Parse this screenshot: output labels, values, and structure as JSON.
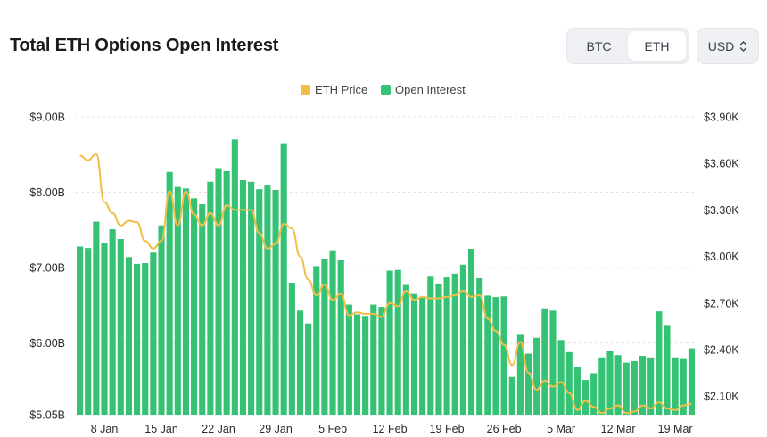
{
  "header": {
    "title": "Total ETH Options Open Interest",
    "asset_tabs": [
      {
        "label": "BTC",
        "active": false
      },
      {
        "label": "ETH",
        "active": true
      }
    ],
    "currency": {
      "label": "USD",
      "icon": "chevron-updown-icon"
    }
  },
  "colors": {
    "open_interest": "#35c274",
    "eth_price": "#f0bf4a",
    "grid": "#e3e3e3"
  },
  "chart_data": {
    "type": "bar",
    "legend": [
      {
        "name": "ETH Price",
        "color": "#f0bf4a"
      },
      {
        "name": "Open Interest",
        "color": "#35c274"
      }
    ],
    "legend_position": "top-center",
    "grid": true,
    "y_left": {
      "ticks": [
        "$9.00B",
        "$8.00B",
        "$7.00B",
        "$6.00B",
        "$5.05B"
      ],
      "tick_values": [
        9.0,
        8.0,
        7.0,
        6.0,
        5.05
      ],
      "range": [
        5.05,
        9.0
      ],
      "unit": "B USD"
    },
    "y_right": {
      "ticks": [
        "$3.90K",
        "$3.60K",
        "$3.30K",
        "$3.00K",
        "$2.70K",
        "$2.40K",
        "$2.10K"
      ],
      "tick_values": [
        3.9,
        3.6,
        3.3,
        3.0,
        2.7,
        2.4,
        2.1
      ],
      "range": [
        1.98,
        3.9
      ],
      "unit": "K USD"
    },
    "x_ticks": [
      {
        "label": "8 Jan",
        "index": 3
      },
      {
        "label": "15 Jan",
        "index": 10
      },
      {
        "label": "22 Jan",
        "index": 17
      },
      {
        "label": "29 Jan",
        "index": 24
      },
      {
        "label": "5 Feb",
        "index": 31
      },
      {
        "label": "12 Feb",
        "index": 38
      },
      {
        "label": "19 Feb",
        "index": 45
      },
      {
        "label": "26 Feb",
        "index": 52
      },
      {
        "label": "5 Mar",
        "index": 59
      },
      {
        "label": "12 Mar",
        "index": 66
      },
      {
        "label": "19 Mar",
        "index": 73
      }
    ],
    "series": [
      {
        "name": "Open Interest",
        "kind": "bar",
        "axis": "left",
        "values": [
          7.28,
          7.26,
          7.61,
          7.33,
          7.51,
          7.38,
          7.14,
          7.05,
          7.06,
          7.2,
          7.56,
          8.27,
          8.07,
          8.05,
          7.92,
          7.84,
          8.14,
          8.32,
          8.28,
          8.7,
          8.16,
          8.14,
          8.04,
          8.1,
          8.03,
          8.65,
          6.8,
          6.43,
          6.26,
          7.02,
          7.12,
          7.23,
          7.1,
          6.51,
          6.38,
          6.36,
          6.51,
          6.48,
          6.96,
          6.97,
          6.77,
          6.65,
          6.6,
          6.88,
          6.79,
          6.87,
          6.92,
          7.04,
          7.25,
          6.86,
          6.63,
          6.61,
          6.62,
          5.55,
          6.11,
          5.86,
          6.07,
          6.46,
          6.43,
          6.04,
          5.88,
          5.68,
          5.51,
          5.6,
          5.81,
          5.89,
          5.84,
          5.74,
          5.76,
          5.83,
          5.81,
          6.42,
          6.24,
          5.81,
          5.8,
          5.93
        ]
      },
      {
        "name": "ETH Price",
        "kind": "line",
        "axis": "right",
        "values": [
          3.65,
          3.62,
          3.66,
          3.35,
          3.28,
          3.2,
          3.23,
          3.22,
          3.1,
          3.05,
          3.1,
          3.42,
          3.2,
          3.42,
          3.27,
          3.2,
          3.28,
          3.2,
          3.33,
          3.3,
          3.3,
          3.3,
          3.15,
          3.05,
          3.08,
          3.21,
          3.18,
          3.0,
          2.85,
          2.75,
          2.82,
          2.72,
          2.76,
          2.62,
          2.64,
          2.63,
          2.63,
          2.61,
          2.7,
          2.68,
          2.78,
          2.72,
          2.74,
          2.73,
          2.73,
          2.74,
          2.75,
          2.78,
          2.74,
          2.75,
          2.6,
          2.52,
          2.43,
          2.3,
          2.45,
          2.25,
          2.14,
          2.2,
          2.16,
          2.19,
          2.12,
          2.01,
          2.07,
          2.03,
          1.99,
          2.02,
          2.04,
          1.99,
          2.0,
          2.04,
          2.02,
          2.06,
          2.02,
          2.01,
          2.04,
          2.05
        ]
      }
    ]
  }
}
